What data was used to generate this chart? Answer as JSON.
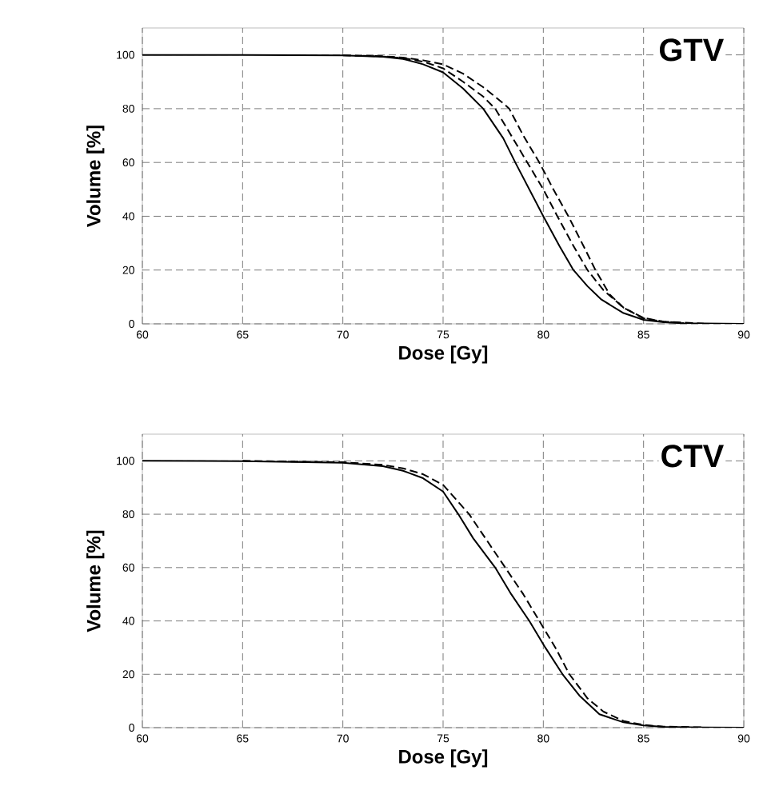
{
  "chart_data": [
    {
      "type": "line",
      "xlabel": "Dose [Gy]",
      "ylabel": "Volume [%]",
      "annotations": [
        "GTV"
      ],
      "xlim": [
        60,
        90
      ],
      "ylim": [
        0,
        110
      ],
      "xticks": [
        60,
        65,
        70,
        75,
        80,
        85,
        90
      ],
      "yticks": [
        0,
        20,
        40,
        60,
        80,
        100
      ],
      "grid": true,
      "series": [
        {
          "color": "#000000",
          "line_style": "solid",
          "x": [
            60,
            65,
            70,
            72,
            73,
            74,
            75,
            76,
            77,
            78,
            78.6,
            79.3,
            80,
            80.8,
            81.5,
            82.2,
            82.9,
            84,
            85,
            86,
            87,
            90
          ],
          "values": [
            100,
            100,
            99.8,
            99.3,
            98.5,
            96.5,
            93.5,
            87.5,
            80,
            69,
            60,
            50,
            40,
            29,
            20,
            14,
            9,
            4,
            1.5,
            0.6,
            0.2,
            0
          ]
        },
        {
          "color": "#000000",
          "line_style": "dashed",
          "x": [
            70,
            72,
            73,
            74,
            75,
            76,
            77,
            77.6,
            78.4,
            79.2,
            80,
            80.7,
            81.5,
            82.2,
            83,
            84,
            85,
            86,
            87
          ],
          "values": [
            99.8,
            99.4,
            98.8,
            97.5,
            95,
            90,
            84.5,
            80,
            70,
            60,
            50,
            40,
            29,
            20,
            12.5,
            6,
            2.2,
            0.8,
            0.3
          ]
        },
        {
          "color": "#000000",
          "line_style": "dashed",
          "x": [
            71,
            72,
            73,
            74,
            75,
            76,
            77,
            78,
            78.3,
            79,
            79.8,
            80.5,
            81.25,
            82,
            82.6,
            83.3,
            84,
            85,
            86,
            88
          ],
          "values": [
            99.7,
            99.5,
            99,
            98,
            96.5,
            93,
            88,
            82,
            80,
            70,
            60,
            50,
            40,
            29,
            20,
            11,
            6,
            2,
            0.8,
            0.1
          ]
        }
      ]
    },
    {
      "type": "line",
      "xlabel": "Dose [Gy]",
      "ylabel": "Volume [%]",
      "annotations": [
        "CTV"
      ],
      "xlim": [
        60,
        90
      ],
      "ylim": [
        0,
        110
      ],
      "xticks": [
        60,
        65,
        70,
        75,
        80,
        85,
        90
      ],
      "yticks": [
        0,
        20,
        40,
        60,
        80,
        100
      ],
      "grid": true,
      "series": [
        {
          "color": "#000000",
          "line_style": "solid",
          "x": [
            60,
            65,
            70,
            72,
            73,
            74,
            75,
            75.76,
            76.5,
            77.6,
            78.4,
            79.3,
            80.1,
            80.96,
            81.8,
            82.8,
            84,
            85,
            86,
            88,
            90
          ],
          "values": [
            100,
            99.9,
            99.3,
            98,
            96.3,
            93.5,
            88.5,
            80,
            71,
            60,
            50,
            40,
            30,
            20,
            12,
            5,
            2,
            0.8,
            0.3,
            0.1,
            0
          ]
        },
        {
          "color": "#000000",
          "line_style": "dashed",
          "x": [
            65,
            70,
            72,
            73,
            74,
            75,
            76.3,
            77.2,
            78.1,
            79,
            79.8,
            80.6,
            81.3,
            82.2,
            83,
            84,
            85,
            86,
            88
          ],
          "values": [
            100,
            99.5,
            98.5,
            97.2,
            95,
            91,
            80,
            70,
            60,
            50,
            40,
            30,
            20,
            11,
            6,
            2.5,
            1,
            0.4,
            0.1
          ]
        }
      ]
    }
  ]
}
